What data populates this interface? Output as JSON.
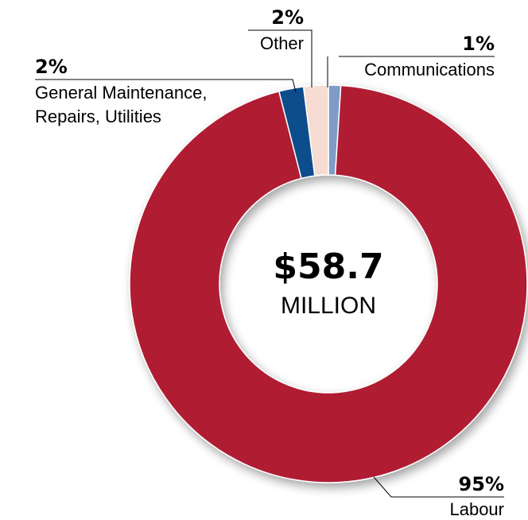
{
  "chart_data": {
    "type": "pie",
    "variant": "donut",
    "center_value": "$58.7",
    "center_unit": "MILLION",
    "slices": [
      {
        "label": "Communications",
        "percent_label": "1%",
        "value": 1,
        "color": "#7f9cc9"
      },
      {
        "label": "Labour",
        "percent_label": "95%",
        "value": 95,
        "color": "#b01e32"
      },
      {
        "label": "General Maintenance, Repairs, Utilities",
        "label_lines": [
          "General Maintenance,",
          "Repairs, Utilities"
        ],
        "percent_label": "2%",
        "value": 2,
        "color": "#0a4d8c"
      },
      {
        "label": "Other",
        "percent_label": "2%",
        "value": 2,
        "color": "#f6dcd2"
      }
    ]
  }
}
